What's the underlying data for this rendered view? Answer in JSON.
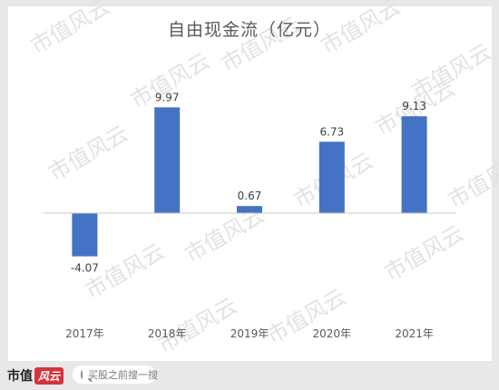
{
  "chart_data": {
    "type": "bar",
    "title": "自由现金流（亿元）",
    "categories": [
      "2017年",
      "2018年",
      "2019年",
      "2020年",
      "2021年"
    ],
    "values": [
      -4.07,
      9.97,
      0.67,
      6.73,
      9.13
    ],
    "value_labels": [
      "-4.07",
      "9.97",
      "0.67",
      "6.73",
      "9.13"
    ],
    "ylim": [
      -5.5,
      12
    ],
    "grid": false,
    "legend": "none",
    "bar_color": "#4472c4"
  },
  "watermark": {
    "text": "市值风云"
  },
  "footer": {
    "brand": "市值",
    "brand_badge": "风云",
    "search_placeholder": "买股之前搜一搜"
  }
}
